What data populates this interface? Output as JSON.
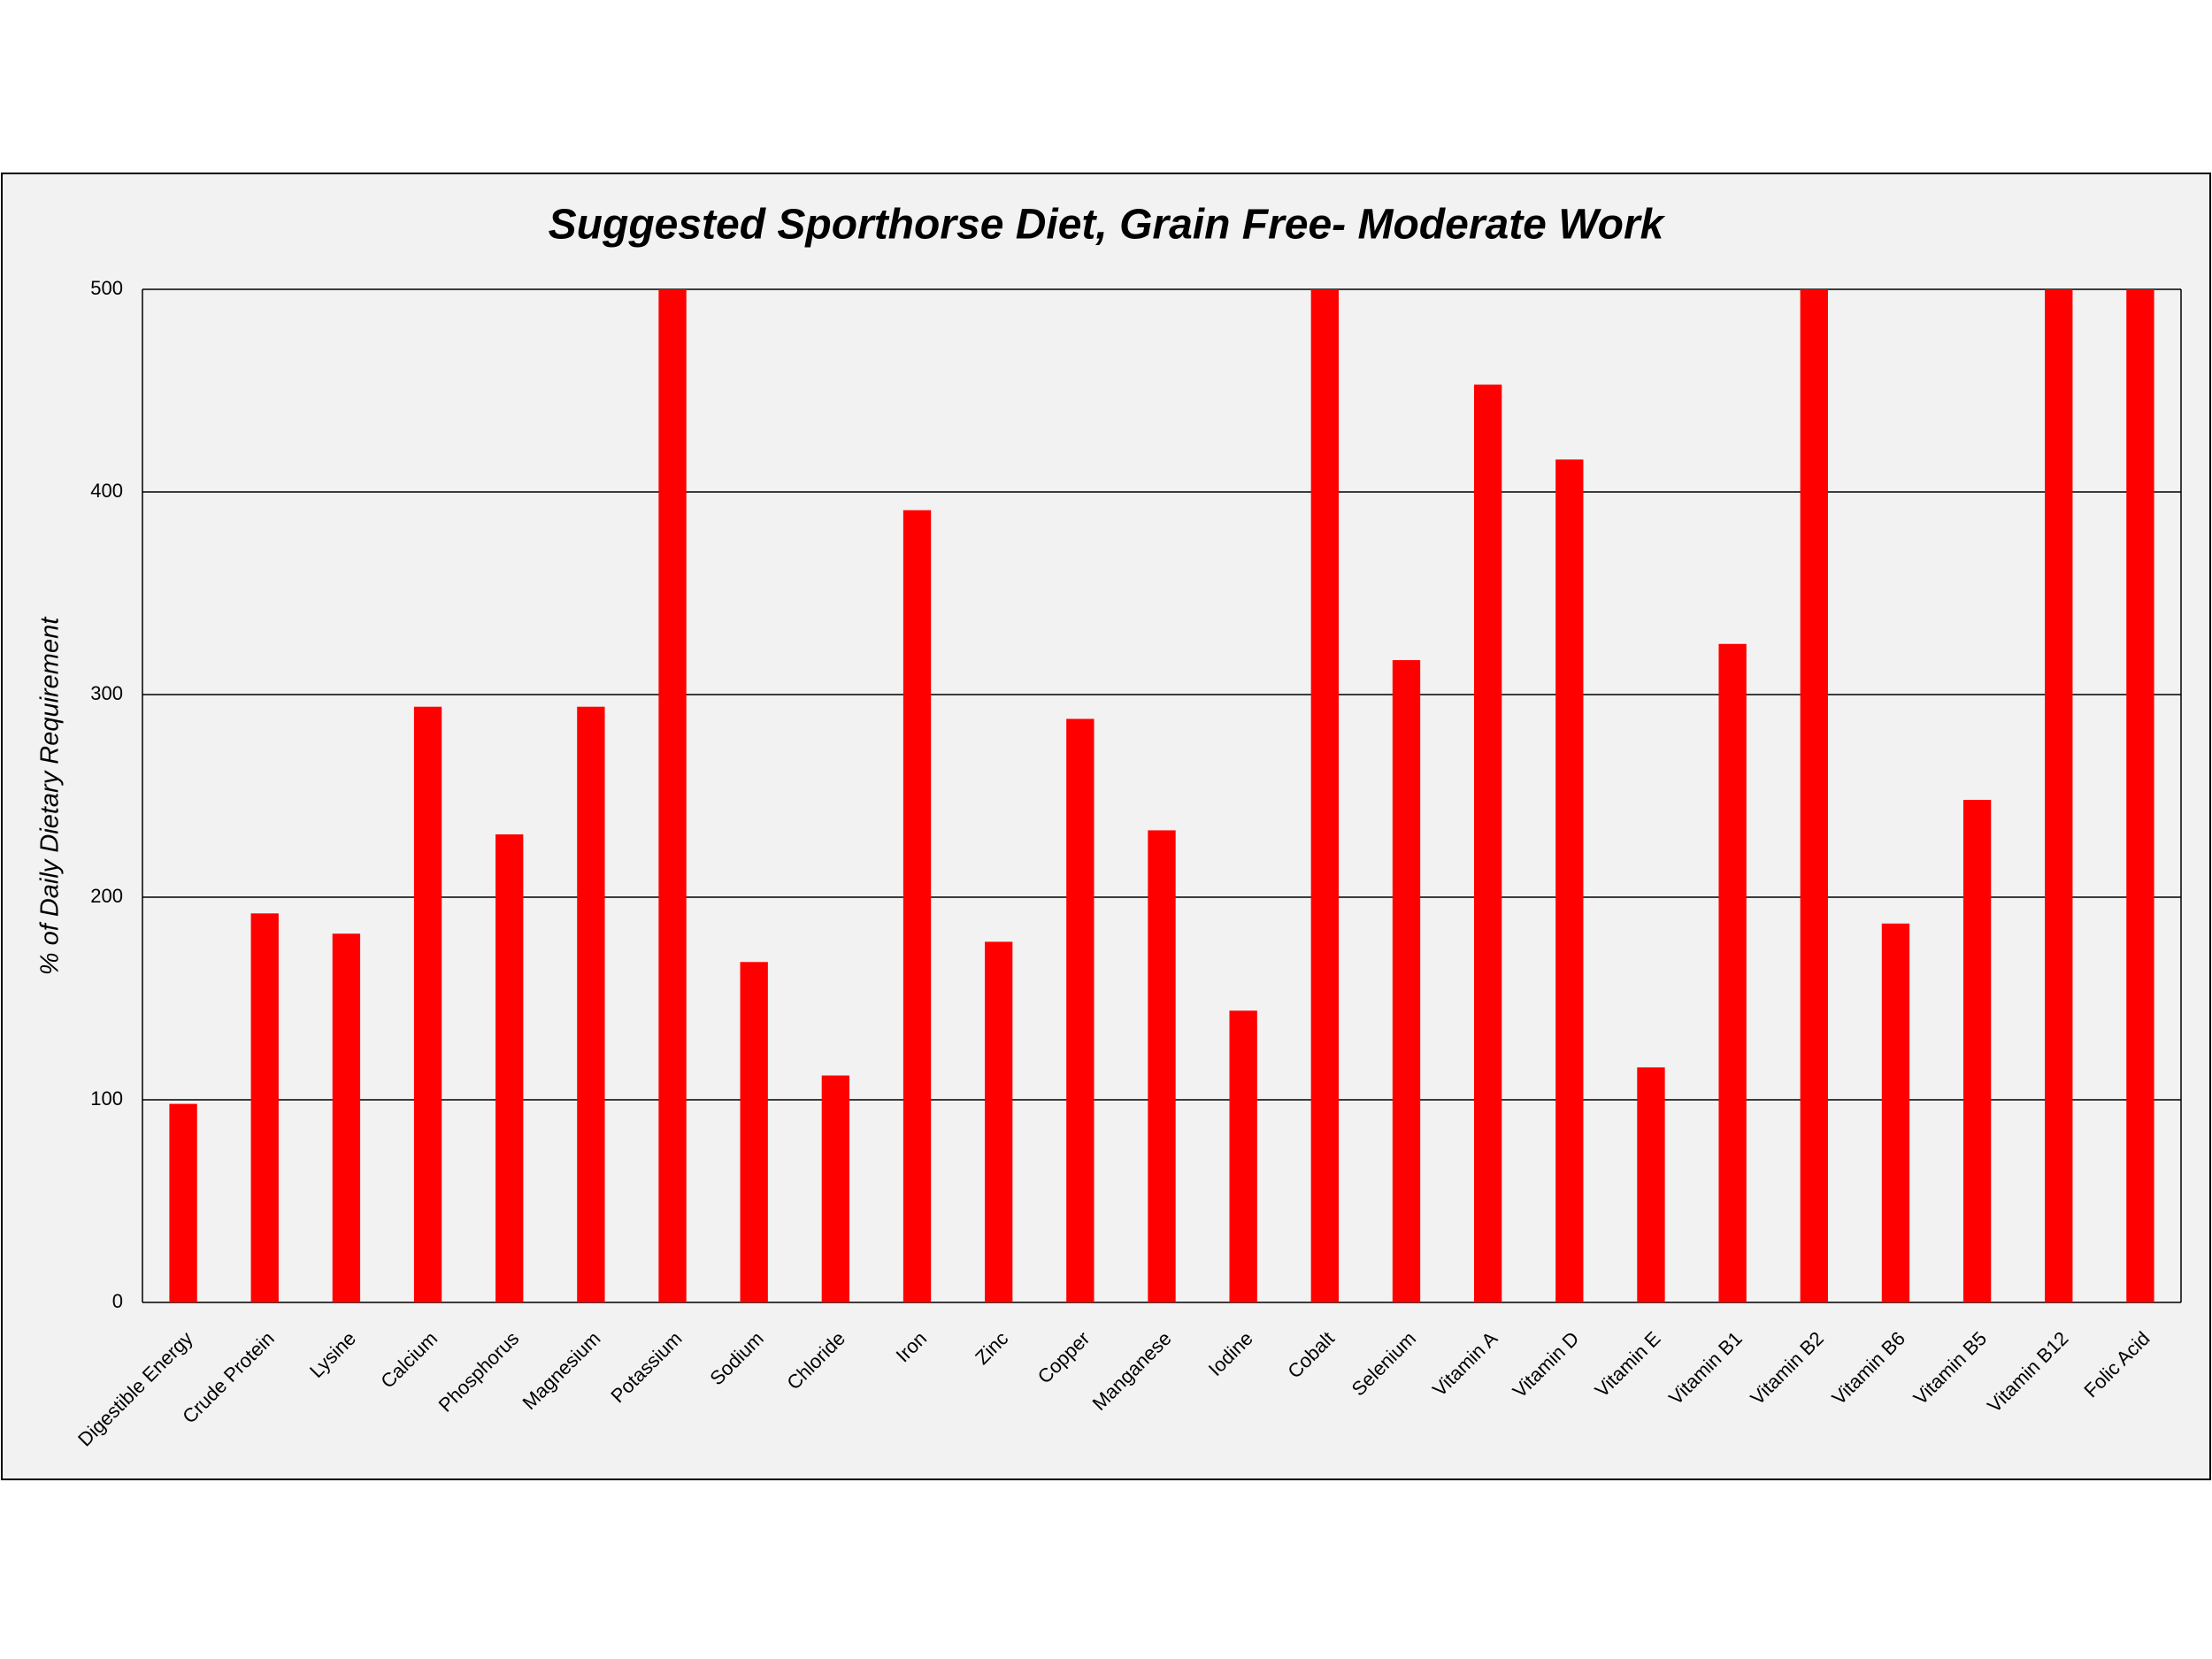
{
  "chart_data": {
    "type": "bar",
    "title": "Suggested Sporthorse Diet, Grain Free- Moderate Work",
    "y_label": "% of Daily Dietary Requirement",
    "categories": [
      "Digestible Energy",
      "Crude Protein",
      "Lysine",
      "Calcium",
      "Phosphorus",
      "Magnesium",
      "Potassium",
      "Sodium",
      "Chloride",
      "Iron",
      "Zinc",
      "Copper",
      "Manganese",
      "Iodine",
      "Cobalt",
      "Selenium",
      "Vitamin A",
      "Vitamin D",
      "Vitamin E",
      "Vitamin B1",
      "Vitamin B2",
      "Vitamin B6",
      "Vitamin B5",
      "Vitamin B12",
      "Folic Acid"
    ],
    "values": [
      98,
      192,
      182,
      294,
      231,
      294,
      500,
      168,
      112,
      391,
      178,
      288,
      233,
      144,
      500,
      317,
      453,
      416,
      116,
      325,
      500,
      187,
      248,
      500,
      500
    ],
    "color": "#ff0000",
    "ylim": [
      0,
      500
    ],
    "yticks": [
      0,
      100,
      200,
      300,
      400,
      500
    ],
    "grid": true
  }
}
